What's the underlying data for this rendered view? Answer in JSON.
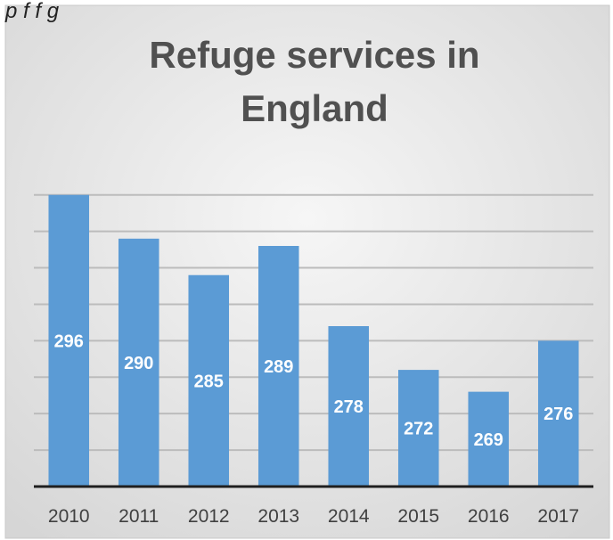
{
  "caption_fragment": "p                    f     f     g",
  "chart_data": {
    "type": "bar",
    "title_lines": [
      "Refuge services in",
      "England"
    ],
    "categories": [
      "2010",
      "2011",
      "2012",
      "2013",
      "2014",
      "2015",
      "2016",
      "2017"
    ],
    "values": [
      296,
      290,
      285,
      289,
      278,
      272,
      269,
      276
    ],
    "ylim": [
      256,
      300
    ],
    "grid": true,
    "legend": "none",
    "bar_color": "#5b9bd5",
    "label_color": "#ffffff",
    "background_gradient": [
      "#f4f4f4",
      "#d7d7d7"
    ],
    "axis_color": "#1f1f1f",
    "gridline_color": "#bcbcbc"
  }
}
